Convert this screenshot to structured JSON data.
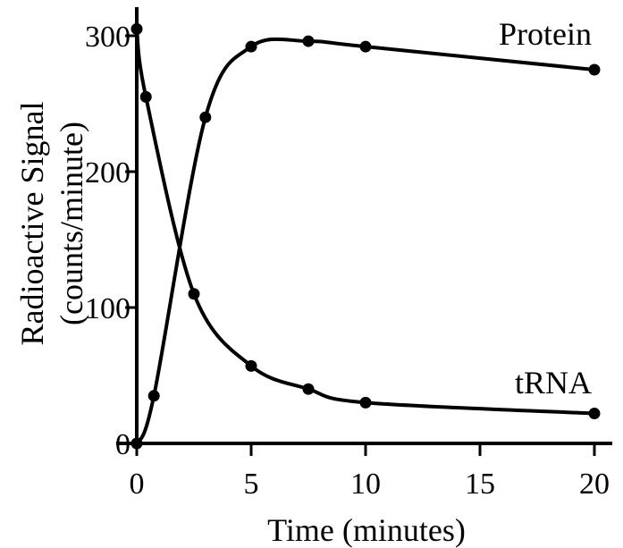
{
  "chart_data": {
    "type": "line",
    "xlabel": "Time (minutes)",
    "ylabel_line1": "Radioactive Signal",
    "ylabel_line2": "(counts/minute)",
    "xlim": [
      0,
      20
    ],
    "ylim": [
      0,
      300
    ],
    "x_ticks": [
      0,
      5,
      10,
      15,
      20
    ],
    "y_ticks": [
      0,
      100,
      200,
      300
    ],
    "x_tick_labels": [
      "0",
      "5",
      "10",
      "15",
      "20"
    ],
    "y_tick_labels": [
      "0",
      "100",
      "200",
      "300"
    ],
    "grid": false,
    "series": [
      {
        "name": "Protein",
        "x": [
          0,
          0.75,
          3,
          5,
          7.5,
          10,
          20
        ],
        "y": [
          0,
          35,
          240,
          292,
          296,
          292,
          275
        ]
      },
      {
        "name": "tRNA",
        "x": [
          0,
          0.4,
          2.5,
          5,
          7.5,
          10,
          20
        ],
        "y": [
          305,
          255,
          110,
          57,
          40,
          30,
          22
        ]
      }
    ]
  }
}
